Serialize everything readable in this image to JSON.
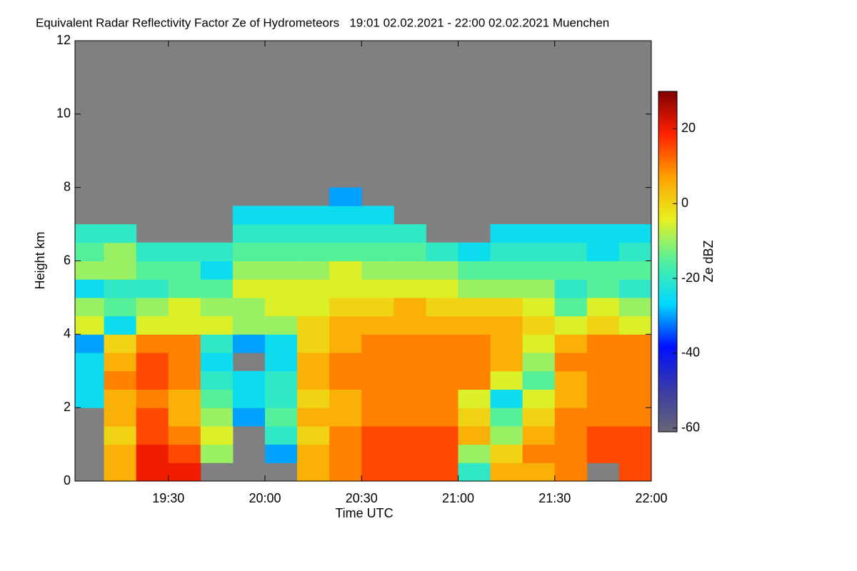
{
  "chart_data": {
    "type": "heatmap",
    "title": "Equivalent Radar Reflectivity Factor Ze of Hydrometeors   19:01 02.02.2021 - 22:00 02.02.2021 Muenchen",
    "x_label": "Time UTC",
    "y_label": "Height km",
    "colorbar_label": "Ze dBZ",
    "xlim": [
      "19:01",
      "22:00"
    ],
    "xticks": [
      "19:30",
      "20:00",
      "20:30",
      "21:00",
      "21:30",
      "22:00"
    ],
    "ylim": [
      0,
      12
    ],
    "yticks": [
      0,
      2,
      4,
      6,
      8,
      10,
      12
    ],
    "zlim": [
      -61,
      30
    ],
    "zticks": [
      20,
      0,
      -20,
      -40,
      -60
    ],
    "missing_color": "#808080",
    "colormap": [
      "#666677",
      "#3a3aa8",
      "#0010ff",
      "#00d8ff",
      "#50f0a0",
      "#e8f020",
      "#ffa000",
      "#ff2000",
      "#800000"
    ],
    "x": [
      "19:05",
      "19:15",
      "19:25",
      "19:35",
      "19:45",
      "19:55",
      "20:05",
      "20:15",
      "20:25",
      "20:35",
      "20:45",
      "20:55",
      "21:05",
      "21:15",
      "21:25",
      "21:35",
      "21:45",
      "21:55"
    ],
    "y": [
      0.25,
      0.75,
      1.25,
      1.75,
      2.25,
      2.75,
      3.25,
      3.75,
      4.25,
      4.75,
      5.25,
      5.75,
      6.25,
      6.75,
      7.25,
      7.75
    ],
    "values": [
      [
        null,
        null,
        null,
        null,
        -25,
        -25,
        -25,
        -30,
        -5,
        -10,
        -25,
        -10,
        -15,
        -20,
        null,
        null
      ],
      [
        5,
        5,
        0,
        5,
        5,
        10,
        5,
        0,
        -25,
        -15,
        -20,
        -10,
        -10,
        -20,
        null,
        null
      ],
      [
        20,
        20,
        15,
        15,
        10,
        15,
        15,
        10,
        -5,
        -10,
        -20,
        -15,
        -20,
        null,
        null,
        null
      ],
      [
        20,
        15,
        10,
        5,
        5,
        10,
        10,
        10,
        -5,
        -5,
        -15,
        -15,
        -20,
        null,
        null,
        null
      ],
      [
        null,
        -10,
        -5,
        -10,
        -15,
        -20,
        -25,
        -20,
        -5,
        -10,
        -15,
        -25,
        -20,
        null,
        null,
        null
      ],
      [
        null,
        null,
        null,
        -30,
        -25,
        -25,
        null,
        -30,
        -10,
        -10,
        -5,
        -10,
        -15,
        -20,
        -25,
        null
      ],
      [
        null,
        -30,
        -20,
        -15,
        -20,
        -20,
        -25,
        -25,
        -10,
        -5,
        -5,
        -10,
        -15,
        -20,
        -25,
        null
      ],
      [
        5,
        5,
        0,
        5,
        0,
        5,
        5,
        0,
        0,
        -5,
        -5,
        -10,
        -15,
        -20,
        -25,
        null
      ],
      [
        10,
        10,
        10,
        5,
        5,
        10,
        10,
        5,
        5,
        0,
        -5,
        -5,
        -15,
        -20,
        -25,
        -30
      ],
      [
        15,
        15,
        15,
        10,
        10,
        10,
        10,
        10,
        5,
        0,
        -5,
        -10,
        -15,
        -20,
        -25,
        null
      ],
      [
        15,
        15,
        15,
        10,
        10,
        10,
        10,
        10,
        5,
        5,
        -5,
        -10,
        -15,
        -20,
        null,
        null
      ],
      [
        15,
        15,
        15,
        10,
        10,
        10,
        10,
        10,
        5,
        0,
        -5,
        -10,
        -20,
        null,
        null,
        null
      ],
      [
        -20,
        -10,
        5,
        0,
        -5,
        10,
        10,
        10,
        5,
        0,
        -10,
        -15,
        -25,
        null,
        null,
        null
      ],
      [
        5,
        0,
        -10,
        -15,
        -25,
        -5,
        5,
        5,
        5,
        0,
        -10,
        -15,
        -20,
        -25,
        null,
        null
      ],
      [
        5,
        10,
        5,
        0,
        -5,
        -15,
        -10,
        -5,
        0,
        -5,
        -10,
        -15,
        -20,
        -25,
        null,
        null
      ],
      [
        10,
        10,
        10,
        10,
        5,
        5,
        10,
        5,
        -5,
        -15,
        -20,
        -15,
        -20,
        -25,
        null,
        null
      ],
      [
        null,
        15,
        15,
        10,
        10,
        10,
        10,
        10,
        0,
        -5,
        -15,
        -15,
        -25,
        -25,
        null,
        null
      ],
      [
        15,
        15,
        15,
        10,
        10,
        10,
        10,
        10,
        -5,
        -10,
        -20,
        -15,
        -20,
        -25,
        null,
        null
      ]
    ]
  }
}
